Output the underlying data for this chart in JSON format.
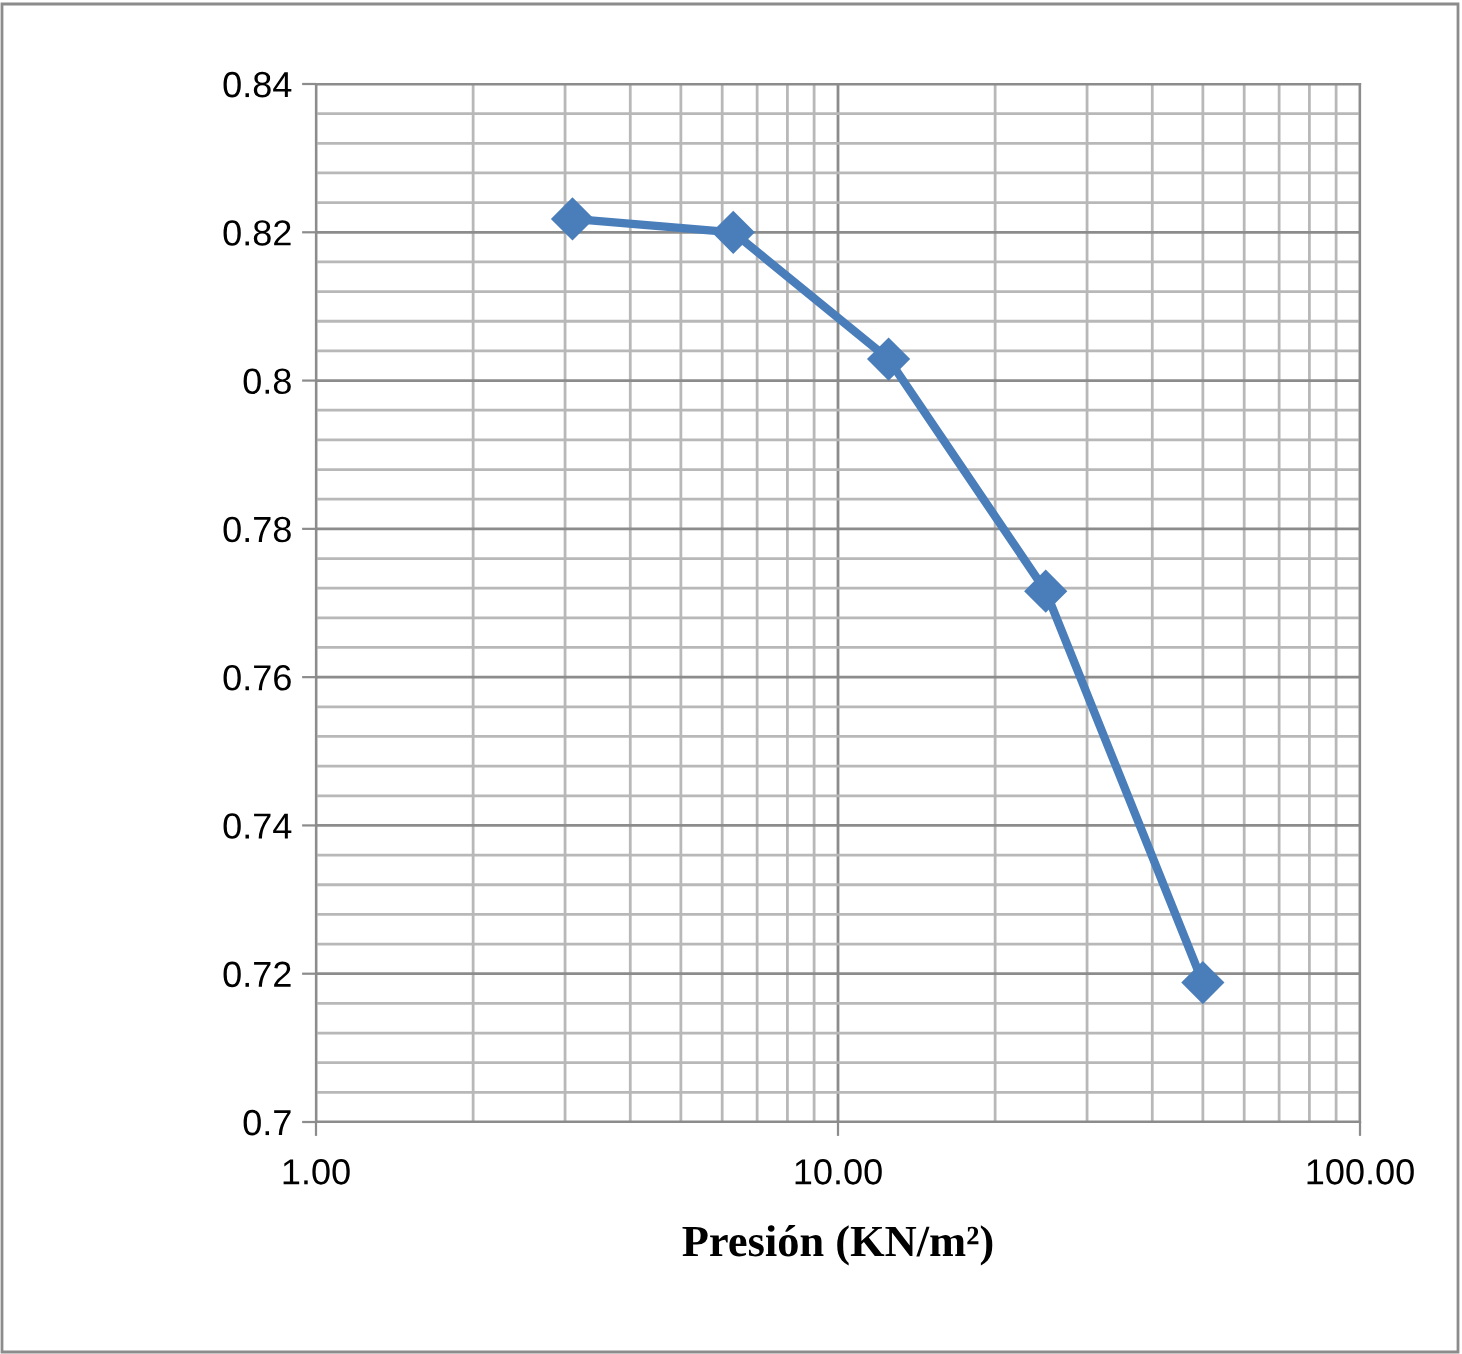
{
  "chart_data": {
    "type": "line",
    "xlabel": "Presión (KN/m²)",
    "x": [
      3.1,
      6.3,
      12.5,
      25,
      50
    ],
    "series": [
      {
        "color": "#4a7ebb",
        "values": [
          0.8218,
          0.82,
          0.8029,
          0.7716,
          0.7188
        ]
      }
    ],
    "log": "x",
    "xlim": [
      1,
      100
    ],
    "xticks": [
      {
        "value": 1,
        "label": "1.00"
      },
      {
        "value": 10,
        "label": "10.00"
      },
      {
        "value": 100,
        "label": "100.00"
      }
    ],
    "ylim": [
      0.7,
      0.84
    ],
    "yticks": [
      0.7,
      0.72,
      0.74,
      0.76,
      0.78,
      0.8,
      0.82,
      0.84
    ],
    "grid": true,
    "marker": "diamond",
    "line_style": "solid"
  }
}
